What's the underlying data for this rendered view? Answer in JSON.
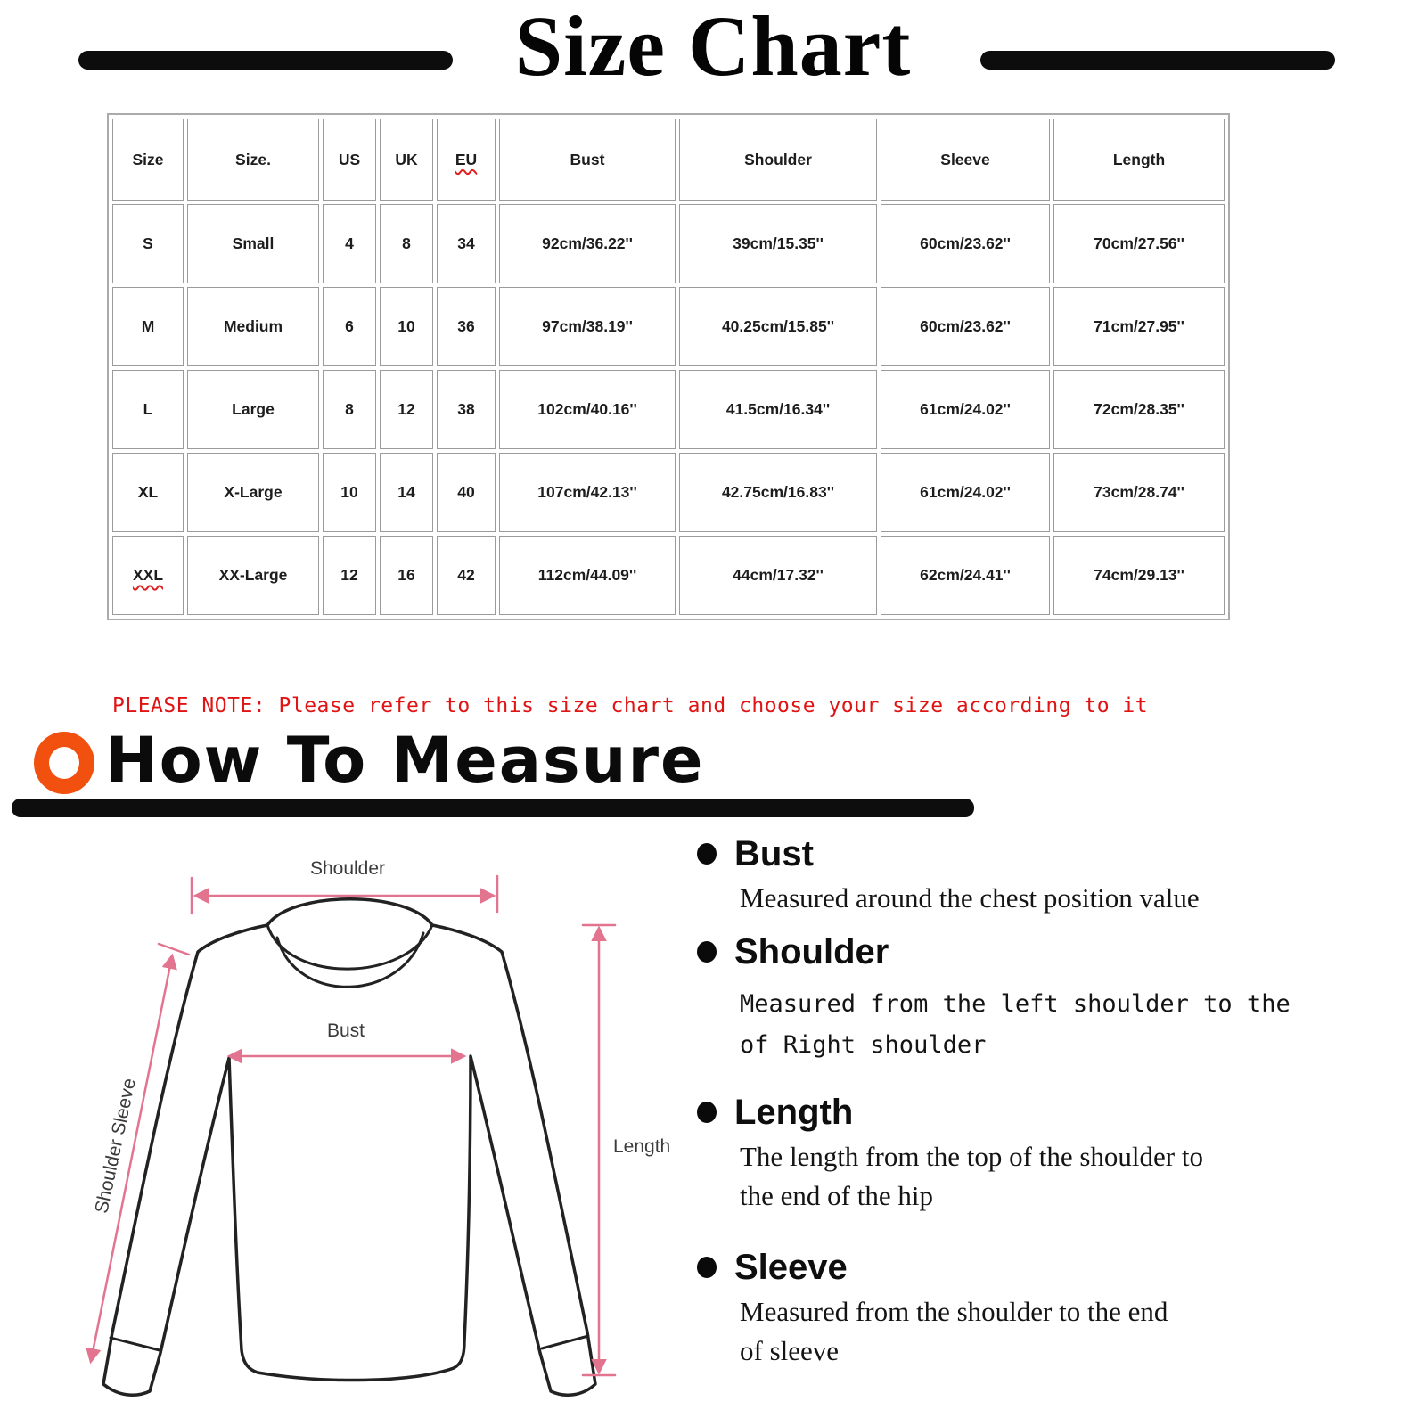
{
  "title": {
    "text": "Size Chart"
  },
  "size_table": {
    "headers": [
      "Size",
      "Size.",
      "US",
      "UK",
      "EU",
      "Bust",
      "Shoulder",
      "Sleeve",
      "Length"
    ],
    "rows": [
      [
        "S",
        "Small",
        "4",
        "8",
        "34",
        "92cm/36.22''",
        "39cm/15.35''",
        "60cm/23.62''",
        "70cm/27.56''"
      ],
      [
        "M",
        "Medium",
        "6",
        "10",
        "36",
        "97cm/38.19''",
        "40.25cm/15.85''",
        "60cm/23.62''",
        "71cm/27.95''"
      ],
      [
        "L",
        "Large",
        "8",
        "12",
        "38",
        "102cm/40.16''",
        "41.5cm/16.34''",
        "61cm/24.02''",
        "72cm/28.35''"
      ],
      [
        "XL",
        "X-Large",
        "10",
        "14",
        "40",
        "107cm/42.13''",
        "42.75cm/16.83''",
        "61cm/24.02''",
        "73cm/28.74''"
      ],
      [
        "XXL",
        "XX-Large",
        "12",
        "16",
        "42",
        "112cm/44.09''",
        "44cm/17.32''",
        "62cm/24.41''",
        "74cm/29.13''"
      ]
    ],
    "spellcheck_marked": [
      "EU",
      "XXL"
    ]
  },
  "note": {
    "text": "PLEASE NOTE: Please refer to this size chart and choose your size according to it"
  },
  "how_to_measure": {
    "heading": "How To Measure"
  },
  "diagram": {
    "labels": {
      "shoulder": "Shoulder",
      "bust": "Bust",
      "length": "Length",
      "shoulder_sleeve": "Shoulder Sleeve"
    }
  },
  "measure_guide": {
    "items": [
      {
        "label": "Bust",
        "desc_lines": [
          "Measured around the chest position value"
        ]
      },
      {
        "label": "Shoulder",
        "desc_lines": [
          "Measured from the left shoulder to the",
          "of Right shoulder"
        ]
      },
      {
        "label": "Length",
        "desc_lines": [
          "The length from the top of the shoulder to",
          "the end of the hip"
        ]
      },
      {
        "label": "Sleeve",
        "desc_lines": [
          "Measured from the shoulder to the end",
          "of sleeve"
        ]
      }
    ]
  },
  "colors": {
    "note_red": "#e01414",
    "accent_orange": "#f2500f",
    "arrow_pink": "#e27490"
  }
}
